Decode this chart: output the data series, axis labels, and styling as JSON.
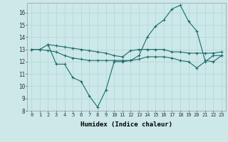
{
  "xlabel": "Humidex (Indice chaleur)",
  "background_color": "#cce8e8",
  "grid_color": "#b8d8d8",
  "line_color": "#1a6b6b",
  "xlim": [
    -0.5,
    23.5
  ],
  "ylim": [
    8,
    16.8
  ],
  "yticks": [
    8,
    9,
    10,
    11,
    12,
    13,
    14,
    15,
    16
  ],
  "xticks": [
    0,
    1,
    2,
    3,
    4,
    5,
    6,
    7,
    8,
    9,
    10,
    11,
    12,
    13,
    14,
    15,
    16,
    17,
    18,
    19,
    20,
    21,
    22,
    23
  ],
  "line1_x": [
    0,
    1,
    2,
    3,
    4,
    5,
    6,
    7,
    8,
    9,
    10,
    11,
    12,
    13,
    14,
    15,
    16,
    17,
    18,
    19,
    20,
    21,
    22,
    23
  ],
  "line1_y": [
    13.0,
    13.0,
    13.4,
    13.3,
    13.2,
    13.1,
    13.0,
    12.9,
    12.8,
    12.7,
    12.5,
    12.4,
    12.9,
    13.0,
    13.0,
    13.0,
    13.0,
    12.8,
    12.8,
    12.7,
    12.7,
    12.7,
    12.7,
    12.8
  ],
  "line2_x": [
    2,
    3,
    4,
    5,
    6,
    7,
    8,
    9,
    10,
    11,
    12,
    13,
    14,
    15,
    16,
    17,
    18,
    19,
    20,
    21,
    22,
    23
  ],
  "line2_y": [
    13.4,
    11.8,
    11.8,
    10.7,
    10.4,
    9.2,
    8.3,
    9.7,
    12.0,
    12.0,
    12.1,
    12.5,
    14.0,
    14.9,
    15.4,
    16.3,
    16.6,
    15.3,
    14.5,
    12.1,
    12.0,
    12.5
  ],
  "line3_x": [
    0,
    1,
    2,
    3,
    4,
    5,
    6,
    7,
    8,
    9,
    10,
    11,
    12,
    13,
    14,
    15,
    16,
    17,
    18,
    19,
    20,
    21,
    22,
    23
  ],
  "line3_y": [
    13.0,
    13.0,
    12.9,
    12.8,
    12.5,
    12.3,
    12.2,
    12.1,
    12.1,
    12.1,
    12.1,
    12.1,
    12.1,
    12.2,
    12.4,
    12.4,
    12.4,
    12.3,
    12.1,
    12.0,
    11.5,
    12.0,
    12.5,
    12.5
  ]
}
